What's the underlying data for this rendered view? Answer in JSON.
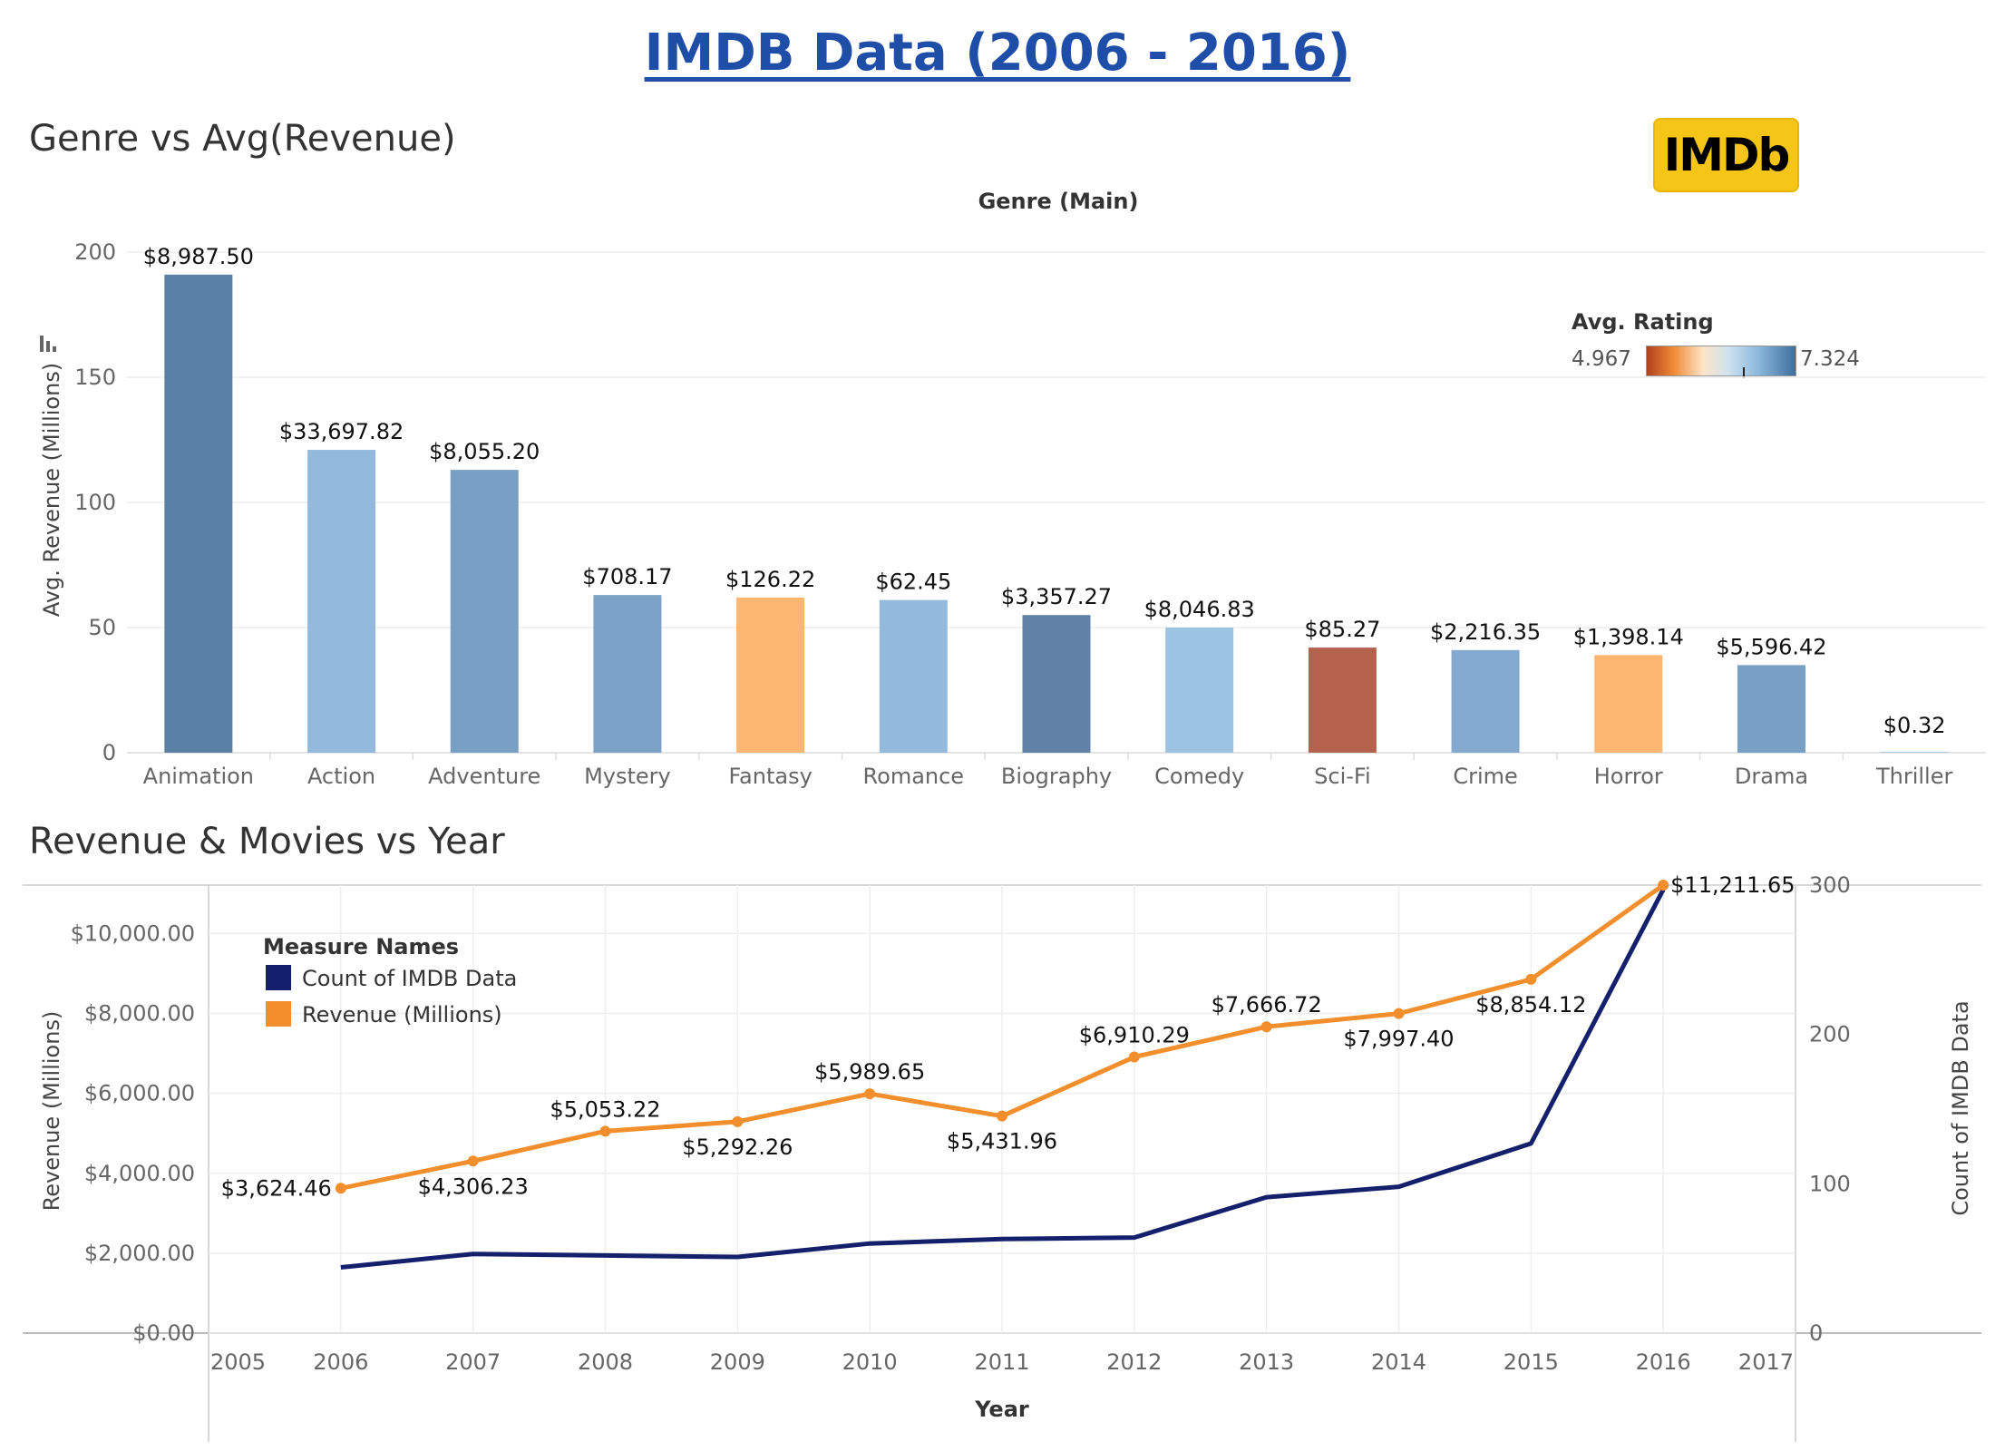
{
  "dashboard": {
    "title": "IMDB Data (2006 - 2016)",
    "logo_text": "IMDb"
  },
  "bar_section": {
    "title": "Genre vs Avg(Revenue)"
  },
  "line_section": {
    "title": "Revenue & Movies vs Year"
  },
  "rating_legend": {
    "title": "Avg. Rating",
    "min_label": "4.967",
    "max_label": "7.324",
    "min": 4.967,
    "max": 7.324,
    "marker": 6.5
  },
  "colors": {
    "title": "#1f4ea8",
    "revenue_line": "#f28e2b",
    "count_line": "#14206b",
    "logo_bg": "#f5c518"
  },
  "chart_data": [
    {
      "type": "bar",
      "title": "Genre vs Avg(Revenue)",
      "xlabel": "Genre (Main)",
      "ylabel": "Avg. Revenue (Millions)",
      "ylim": [
        0,
        200
      ],
      "yticks": [
        0,
        50,
        100,
        150,
        200
      ],
      "categories": [
        "Animation",
        "Action",
        "Adventure",
        "Mystery",
        "Fantasy",
        "Romance",
        "Biography",
        "Comedy",
        "Sci-Fi",
        "Crime",
        "Horror",
        "Drama",
        "Thriller"
      ],
      "values": [
        191,
        121,
        113,
        63,
        62,
        61,
        55,
        50,
        42,
        41,
        39,
        35,
        0.3
      ],
      "labels": [
        "$8,987.50",
        "$33,697.82",
        "$8,055.20",
        "$708.17",
        "$126.22",
        "$62.45",
        "$3,357.27",
        "$8,046.83",
        "$85.27",
        "$2,216.35",
        "$1,398.14",
        "$5,596.42",
        "$0.32"
      ],
      "colors": [
        "#5a80a5",
        "#93b9dc",
        "#789fc4",
        "#7ca2c8",
        "#fdb672",
        "#93b9dc",
        "#5f82a6",
        "#9dc3e2",
        "#b4614d",
        "#83a9cf",
        "#fdb672",
        "#789fc4",
        "#9dc3e2"
      ],
      "color_legend": "Avg. Rating",
      "grid": true
    },
    {
      "type": "line",
      "title": "Revenue & Movies vs Year",
      "xlabel": "Year",
      "ylabel": "Revenue (Millions)",
      "y2label": "Count of IMDB Data",
      "xlim": [
        2005,
        2017
      ],
      "xticks": [
        2005,
        2006,
        2007,
        2008,
        2009,
        2010,
        2011,
        2012,
        2013,
        2014,
        2015,
        2016,
        2017
      ],
      "ylim": [
        0,
        11212
      ],
      "yticks": [
        0,
        2000,
        4000,
        6000,
        8000,
        10000
      ],
      "ytick_labels": [
        "$0.00",
        "$2,000.00",
        "$4,000.00",
        "$6,000.00",
        "$8,000.00",
        "$10,000.00"
      ],
      "y2lim": [
        0,
        300
      ],
      "y2ticks": [
        0,
        100,
        200,
        300
      ],
      "legend_title": "Measure Names",
      "legend_position": "top-left",
      "x": [
        2006,
        2007,
        2008,
        2009,
        2010,
        2011,
        2012,
        2013,
        2014,
        2015,
        2016
      ],
      "series": [
        {
          "name": "Count of IMDB Data",
          "axis": "right",
          "color": "#14206b",
          "values": [
            44,
            53,
            52,
            51,
            60,
            63,
            64,
            91,
            98,
            127,
            297
          ]
        },
        {
          "name": "Revenue (Millions)",
          "axis": "left",
          "color": "#f28e2b",
          "values": [
            3624.46,
            4306.23,
            5053.22,
            5292.26,
            5989.65,
            5431.96,
            6910.29,
            7666.72,
            7997.4,
            8854.12,
            11211.65
          ],
          "labels": [
            "$3,624.46",
            "$4,306.23",
            "$5,053.22",
            "$5,292.26",
            "$5,989.65",
            "$5,431.96",
            "$6,910.29",
            "$7,666.72",
            "$7,997.40",
            "$8,854.12",
            "$11,211.65"
          ]
        }
      ],
      "grid": true
    }
  ]
}
